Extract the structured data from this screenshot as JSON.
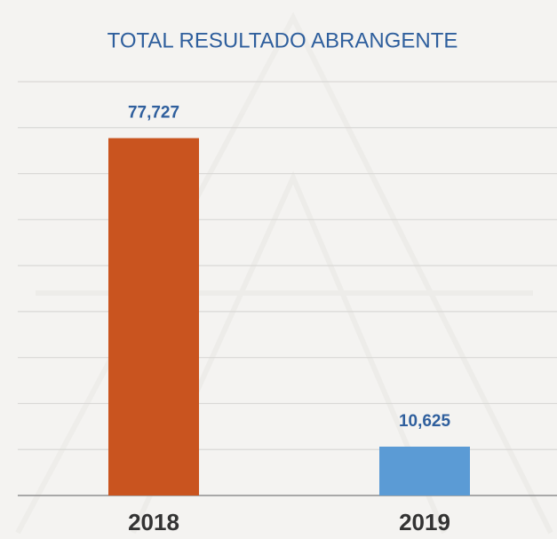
{
  "chart_data": {
    "type": "bar",
    "title": "TOTAL RESULTADO ABRANGENTE",
    "categories": [
      "2018",
      "2019"
    ],
    "values": [
      77727,
      10625
    ],
    "value_labels": [
      "77,727",
      "10,625"
    ],
    "colors": [
      "#c9541f",
      "#5b9bd5"
    ],
    "ylim": [
      0,
      90000
    ],
    "yticks": [
      0,
      10000,
      20000,
      30000,
      40000,
      50000,
      60000,
      70000,
      80000,
      90000
    ],
    "grid": true
  }
}
